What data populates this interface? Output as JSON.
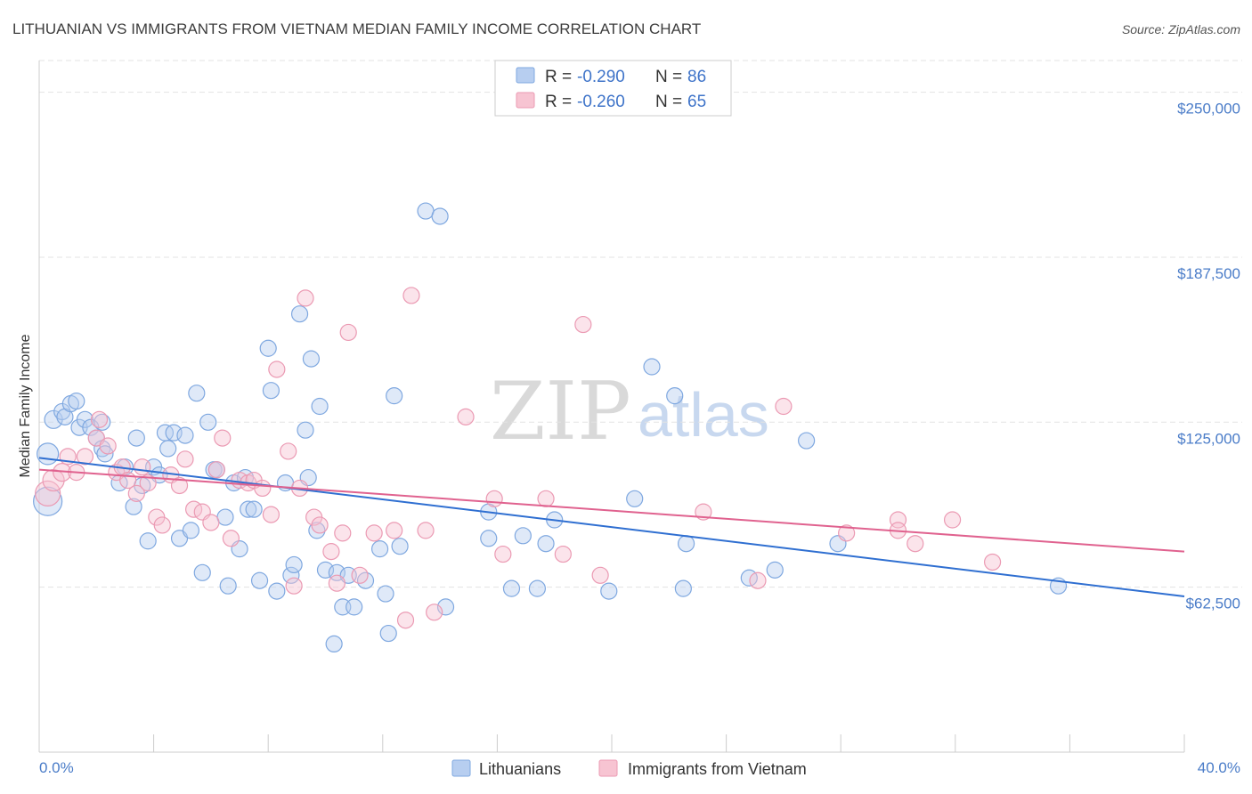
{
  "chart_data": {
    "type": "scatter",
    "title": "LITHUANIAN VS IMMIGRANTS FROM VIETNAM MEDIAN FAMILY INCOME CORRELATION CHART",
    "source": "Source: ZipAtlas.com",
    "xlabel": "",
    "ylabel": "Median Family Income",
    "xlim": [
      0,
      40
    ],
    "ylim": [
      0,
      262000
    ],
    "x_tick_labels": [
      "0.0%",
      "40.0%"
    ],
    "y_ticks": [
      {
        "value": 62500,
        "label": "$62,500"
      },
      {
        "value": 125000,
        "label": "$125,000"
      },
      {
        "value": 187500,
        "label": "$187,500"
      },
      {
        "value": 250000,
        "label": "$250,000"
      }
    ],
    "legend": {
      "rows": [
        {
          "r_label": "R = ",
          "r_value": "-0.290",
          "n_label": "N = ",
          "n_value": "86"
        },
        {
          "r_label": "R = ",
          "r_value": "-0.260",
          "n_label": "N = ",
          "n_value": "65"
        }
      ]
    },
    "watermark": {
      "zip": "ZIP",
      "atlas": "atlas"
    },
    "series": [
      {
        "name": "Lithuanians",
        "color": "#7fa8e0",
        "fill": "#b7cef0",
        "trend_color": "#2f6fd1",
        "trend": {
          "x0": 0,
          "y0": 111500,
          "x1": 40,
          "y1": 59000
        },
        "points": [
          [
            0.3,
            95000,
            16
          ],
          [
            0.3,
            113000,
            12
          ],
          [
            0.5,
            126000,
            10
          ],
          [
            0.8,
            129000,
            9
          ],
          [
            0.9,
            127000,
            9
          ],
          [
            1.1,
            132000,
            9
          ],
          [
            1.3,
            133000,
            9
          ],
          [
            1.4,
            123000,
            9
          ],
          [
            1.6,
            126000,
            9
          ],
          [
            1.8,
            123000,
            9
          ],
          [
            2.0,
            119000,
            9
          ],
          [
            2.2,
            115000,
            9
          ],
          [
            2.3,
            113000,
            9
          ],
          [
            2.2,
            125000,
            9
          ],
          [
            2.8,
            102000,
            9
          ],
          [
            3.0,
            108000,
            9
          ],
          [
            3.3,
            93000,
            9
          ],
          [
            3.4,
            119000,
            9
          ],
          [
            3.6,
            101000,
            9
          ],
          [
            3.8,
            80000,
            9
          ],
          [
            4.0,
            108000,
            9
          ],
          [
            4.2,
            105000,
            9
          ],
          [
            4.4,
            121000,
            9
          ],
          [
            4.5,
            115000,
            9
          ],
          [
            4.7,
            121000,
            9
          ],
          [
            4.9,
            81000,
            9
          ],
          [
            5.1,
            120000,
            9
          ],
          [
            5.3,
            84000,
            9
          ],
          [
            5.5,
            136000,
            9
          ],
          [
            5.7,
            68000,
            9
          ],
          [
            5.9,
            125000,
            9
          ],
          [
            6.1,
            107000,
            9
          ],
          [
            6.2,
            107000,
            9
          ],
          [
            6.5,
            89000,
            9
          ],
          [
            6.6,
            63000,
            9
          ],
          [
            6.8,
            102000,
            9
          ],
          [
            7.0,
            77000,
            9
          ],
          [
            7.2,
            104000,
            9
          ],
          [
            7.3,
            92000,
            9
          ],
          [
            7.5,
            92000,
            9
          ],
          [
            7.7,
            65000,
            9
          ],
          [
            8.0,
            153000,
            9
          ],
          [
            8.1,
            137000,
            9
          ],
          [
            8.3,
            61000,
            9
          ],
          [
            8.6,
            102000,
            9
          ],
          [
            8.8,
            67000,
            9
          ],
          [
            8.9,
            71000,
            9
          ],
          [
            9.1,
            166000,
            9
          ],
          [
            9.3,
            122000,
            9
          ],
          [
            9.4,
            104000,
            9
          ],
          [
            9.5,
            149000,
            9
          ],
          [
            9.7,
            84000,
            9
          ],
          [
            9.8,
            131000,
            9
          ],
          [
            10.0,
            69000,
            9
          ],
          [
            10.3,
            41000,
            9
          ],
          [
            10.4,
            68000,
            9
          ],
          [
            10.6,
            55000,
            9
          ],
          [
            10.8,
            67000,
            9
          ],
          [
            11.0,
            55000,
            9
          ],
          [
            11.4,
            65000,
            9
          ],
          [
            11.9,
            77000,
            9
          ],
          [
            12.1,
            60000,
            9
          ],
          [
            12.2,
            45000,
            9
          ],
          [
            12.4,
            135000,
            9
          ],
          [
            12.6,
            78000,
            9
          ],
          [
            13.5,
            205000,
            9
          ],
          [
            14.0,
            203000,
            9
          ],
          [
            14.2,
            55000,
            9
          ],
          [
            15.7,
            91000,
            9
          ],
          [
            15.7,
            81000,
            9
          ],
          [
            16.5,
            62000,
            9
          ],
          [
            16.9,
            82000,
            9
          ],
          [
            17.4,
            62000,
            9
          ],
          [
            17.7,
            79000,
            9
          ],
          [
            18.0,
            88000,
            9
          ],
          [
            19.9,
            61000,
            9
          ],
          [
            20.8,
            96000,
            9
          ],
          [
            21.4,
            146000,
            9
          ],
          [
            22.2,
            135000,
            9
          ],
          [
            22.5,
            62000,
            9
          ],
          [
            22.6,
            79000,
            9
          ],
          [
            24.8,
            66000,
            9
          ],
          [
            25.7,
            69000,
            9
          ],
          [
            26.8,
            118000,
            9
          ],
          [
            27.9,
            79000,
            9
          ],
          [
            35.6,
            63000,
            9
          ]
        ]
      },
      {
        "name": "Immigrants from Vietnam",
        "color": "#eb9ab3",
        "fill": "#f7c4d2",
        "trend_color": "#e0628f",
        "trend": {
          "x0": 0,
          "y0": 107000,
          "x1": 40,
          "y1": 76000
        },
        "points": [
          [
            0.3,
            98000,
            14
          ],
          [
            0.5,
            103000,
            12
          ],
          [
            0.8,
            106000,
            10
          ],
          [
            1.0,
            112000,
            9
          ],
          [
            1.3,
            106000,
            9
          ],
          [
            1.6,
            112000,
            9
          ],
          [
            2.0,
            119000,
            9
          ],
          [
            2.1,
            126000,
            9
          ],
          [
            2.4,
            116000,
            9
          ],
          [
            2.7,
            106000,
            9
          ],
          [
            2.9,
            108000,
            9
          ],
          [
            3.1,
            103000,
            9
          ],
          [
            3.4,
            98000,
            9
          ],
          [
            3.6,
            108000,
            9
          ],
          [
            3.8,
            102000,
            9
          ],
          [
            4.1,
            89000,
            9
          ],
          [
            4.3,
            86000,
            9
          ],
          [
            4.6,
            105000,
            9
          ],
          [
            4.9,
            101000,
            9
          ],
          [
            5.1,
            111000,
            9
          ],
          [
            5.4,
            92000,
            9
          ],
          [
            5.7,
            91000,
            9
          ],
          [
            6.0,
            87000,
            9
          ],
          [
            6.2,
            107000,
            9
          ],
          [
            6.4,
            119000,
            9
          ],
          [
            6.7,
            81000,
            9
          ],
          [
            7.0,
            103000,
            9
          ],
          [
            7.3,
            102000,
            9
          ],
          [
            7.5,
            103000,
            9
          ],
          [
            7.8,
            100000,
            9
          ],
          [
            8.1,
            90000,
            9
          ],
          [
            8.3,
            145000,
            9
          ],
          [
            8.7,
            114000,
            9
          ],
          [
            8.9,
            63000,
            9
          ],
          [
            9.1,
            100000,
            9
          ],
          [
            9.3,
            172000,
            9
          ],
          [
            9.6,
            89000,
            9
          ],
          [
            9.8,
            86000,
            9
          ],
          [
            10.2,
            76000,
            9
          ],
          [
            10.4,
            64000,
            9
          ],
          [
            10.6,
            83000,
            9
          ],
          [
            10.8,
            159000,
            9
          ],
          [
            11.2,
            67000,
            9
          ],
          [
            11.7,
            83000,
            9
          ],
          [
            12.4,
            84000,
            9
          ],
          [
            12.8,
            50000,
            9
          ],
          [
            13.0,
            173000,
            9
          ],
          [
            13.5,
            84000,
            9
          ],
          [
            13.8,
            53000,
            9
          ],
          [
            14.9,
            127000,
            9
          ],
          [
            15.9,
            96000,
            9
          ],
          [
            16.2,
            75000,
            9
          ],
          [
            17.7,
            96000,
            9
          ],
          [
            18.3,
            75000,
            9
          ],
          [
            19.0,
            162000,
            9
          ],
          [
            19.6,
            67000,
            9
          ],
          [
            23.2,
            91000,
            9
          ],
          [
            25.1,
            65000,
            9
          ],
          [
            26.0,
            131000,
            9
          ],
          [
            28.2,
            83000,
            9
          ],
          [
            30.0,
            88000,
            9
          ],
          [
            30.0,
            84000,
            9
          ],
          [
            30.6,
            79000,
            9
          ],
          [
            31.9,
            88000,
            9
          ],
          [
            33.3,
            72000,
            9
          ]
        ]
      }
    ]
  }
}
